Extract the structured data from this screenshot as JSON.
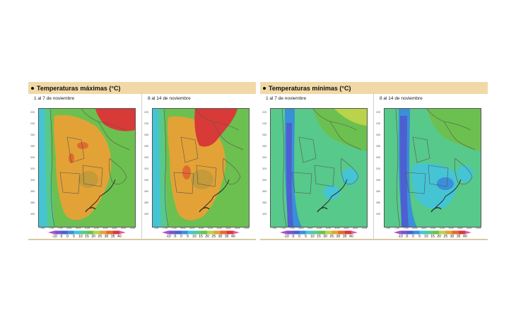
{
  "panels": [
    {
      "title": "Temperaturas máximas (°C)",
      "maps": [
        {
          "label": "1 al 7 de noviembre",
          "scheme": "max1"
        },
        {
          "label": "8 al 14 de noviembre",
          "scheme": "max2"
        }
      ]
    },
    {
      "title": "Temperaturas mínimas (°C)",
      "maps": [
        {
          "label": "1 al 7 de noviembre",
          "scheme": "min1"
        },
        {
          "label": "8 al 14 de noviembre",
          "scheme": "min2"
        }
      ]
    }
  ],
  "legend": {
    "ticks": [
      "-10",
      "-5",
      "0",
      "5",
      "10",
      "15",
      "20",
      "25",
      "30",
      "35",
      "40"
    ],
    "colors": [
      "#b04fc4",
      "#7e53c9",
      "#4d5fd1",
      "#3a8fd9",
      "#45c4d4",
      "#57c98a",
      "#6cc04f",
      "#b9d34a",
      "#e3a236",
      "#e36a2e",
      "#d83a38",
      "#e05aa4"
    ]
  },
  "lat_ticks": [
    "22S",
    "24S",
    "26S",
    "28S",
    "30S",
    "32S",
    "34S",
    "36S",
    "38S",
    "40S"
  ],
  "lon_ticks": [
    "74W",
    "72W",
    "70W",
    "68W",
    "66W",
    "64W",
    "62W",
    "60W",
    "58W",
    "56W",
    "54W"
  ]
}
